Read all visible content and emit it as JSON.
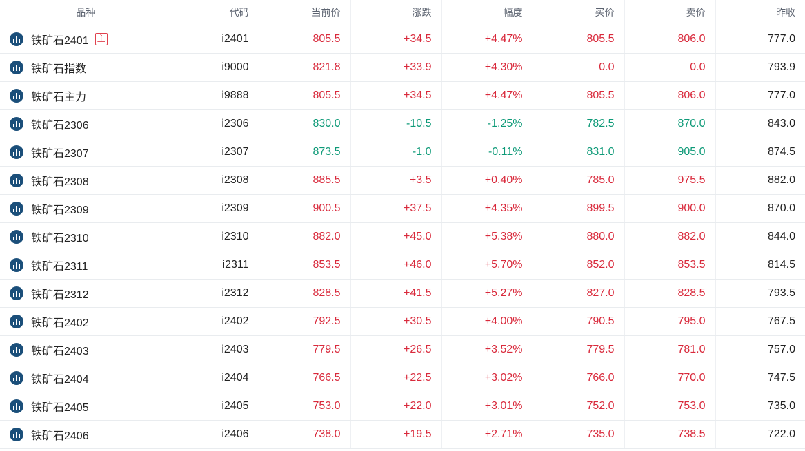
{
  "columns": [
    "品种",
    "代码",
    "当前价",
    "涨跌",
    "幅度",
    "买价",
    "卖价",
    "昨收"
  ],
  "colors": {
    "up": "#d92a3c",
    "down": "#0e9a78",
    "icon": "#1b4f7a",
    "badge": "#e0414e"
  },
  "rows": [
    {
      "name": "铁矿石2401",
      "badge": "主",
      "code": "i2401",
      "price": "805.5",
      "change": "+34.5",
      "pct": "+4.47%",
      "bid": "805.5",
      "ask": "806.0",
      "prev": "777.0",
      "trend": "up",
      "bidTrend": "up",
      "askTrend": "up"
    },
    {
      "name": "铁矿石指数",
      "badge": "",
      "code": "i9000",
      "price": "821.8",
      "change": "+33.9",
      "pct": "+4.30%",
      "bid": "0.0",
      "ask": "0.0",
      "prev": "793.9",
      "trend": "up",
      "bidTrend": "up",
      "askTrend": "up"
    },
    {
      "name": "铁矿石主力",
      "badge": "",
      "code": "i9888",
      "price": "805.5",
      "change": "+34.5",
      "pct": "+4.47%",
      "bid": "805.5",
      "ask": "806.0",
      "prev": "777.0",
      "trend": "up",
      "bidTrend": "up",
      "askTrend": "up"
    },
    {
      "name": "铁矿石2306",
      "badge": "",
      "code": "i2306",
      "price": "830.0",
      "change": "-10.5",
      "pct": "-1.25%",
      "bid": "782.5",
      "ask": "870.0",
      "prev": "843.0",
      "trend": "down",
      "bidTrend": "down",
      "askTrend": "down"
    },
    {
      "name": "铁矿石2307",
      "badge": "",
      "code": "i2307",
      "price": "873.5",
      "change": "-1.0",
      "pct": "-0.11%",
      "bid": "831.0",
      "ask": "905.0",
      "prev": "874.5",
      "trend": "down",
      "bidTrend": "down",
      "askTrend": "down"
    },
    {
      "name": "铁矿石2308",
      "badge": "",
      "code": "i2308",
      "price": "885.5",
      "change": "+3.5",
      "pct": "+0.40%",
      "bid": "785.0",
      "ask": "975.5",
      "prev": "882.0",
      "trend": "up",
      "bidTrend": "up",
      "askTrend": "up"
    },
    {
      "name": "铁矿石2309",
      "badge": "",
      "code": "i2309",
      "price": "900.5",
      "change": "+37.5",
      "pct": "+4.35%",
      "bid": "899.5",
      "ask": "900.0",
      "prev": "870.0",
      "trend": "up",
      "bidTrend": "up",
      "askTrend": "up"
    },
    {
      "name": "铁矿石2310",
      "badge": "",
      "code": "i2310",
      "price": "882.0",
      "change": "+45.0",
      "pct": "+5.38%",
      "bid": "880.0",
      "ask": "882.0",
      "prev": "844.0",
      "trend": "up",
      "bidTrend": "up",
      "askTrend": "up"
    },
    {
      "name": "铁矿石2311",
      "badge": "",
      "code": "i2311",
      "price": "853.5",
      "change": "+46.0",
      "pct": "+5.70%",
      "bid": "852.0",
      "ask": "853.5",
      "prev": "814.5",
      "trend": "up",
      "bidTrend": "up",
      "askTrend": "up"
    },
    {
      "name": "铁矿石2312",
      "badge": "",
      "code": "i2312",
      "price": "828.5",
      "change": "+41.5",
      "pct": "+5.27%",
      "bid": "827.0",
      "ask": "828.5",
      "prev": "793.5",
      "trend": "up",
      "bidTrend": "up",
      "askTrend": "up"
    },
    {
      "name": "铁矿石2402",
      "badge": "",
      "code": "i2402",
      "price": "792.5",
      "change": "+30.5",
      "pct": "+4.00%",
      "bid": "790.5",
      "ask": "795.0",
      "prev": "767.5",
      "trend": "up",
      "bidTrend": "up",
      "askTrend": "up"
    },
    {
      "name": "铁矿石2403",
      "badge": "",
      "code": "i2403",
      "price": "779.5",
      "change": "+26.5",
      "pct": "+3.52%",
      "bid": "779.5",
      "ask": "781.0",
      "prev": "757.0",
      "trend": "up",
      "bidTrend": "up",
      "askTrend": "up"
    },
    {
      "name": "铁矿石2404",
      "badge": "",
      "code": "i2404",
      "price": "766.5",
      "change": "+22.5",
      "pct": "+3.02%",
      "bid": "766.0",
      "ask": "770.0",
      "prev": "747.5",
      "trend": "up",
      "bidTrend": "up",
      "askTrend": "up"
    },
    {
      "name": "铁矿石2405",
      "badge": "",
      "code": "i2405",
      "price": "753.0",
      "change": "+22.0",
      "pct": "+3.01%",
      "bid": "752.0",
      "ask": "753.0",
      "prev": "735.0",
      "trend": "up",
      "bidTrend": "up",
      "askTrend": "up"
    },
    {
      "name": "铁矿石2406",
      "badge": "",
      "code": "i2406",
      "price": "738.0",
      "change": "+19.5",
      "pct": "+2.71%",
      "bid": "735.0",
      "ask": "738.5",
      "prev": "722.0",
      "trend": "up",
      "bidTrend": "up",
      "askTrend": "up"
    }
  ]
}
